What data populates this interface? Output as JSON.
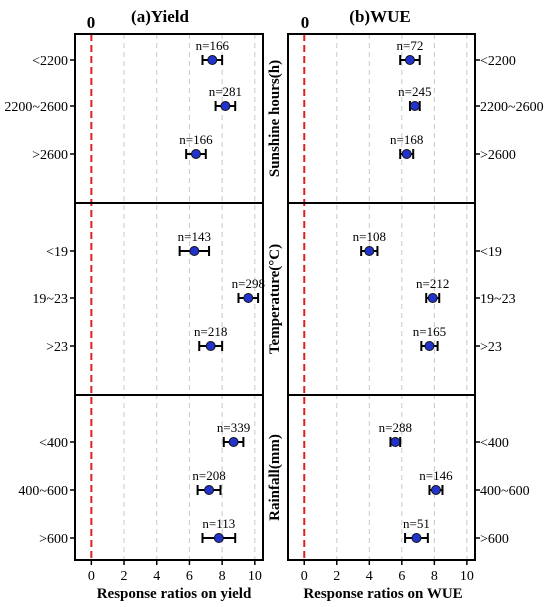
{
  "chart_data": [
    {
      "type": "scatter",
      "title": "(a)Yield",
      "xlabel": "Response ratios on yield",
      "zero_label": "0",
      "xlim": [
        -1,
        10.5
      ],
      "xticks": [
        "0",
        "2",
        "4",
        "6",
        "8",
        "10"
      ],
      "groups": [
        {
          "name": "Sunshine hours(h)",
          "categories": [
            "<2200",
            "2200~2600",
            ">2600"
          ],
          "values": [
            7.4,
            8.2,
            6.4
          ],
          "ci_low": [
            6.8,
            7.6,
            5.8
          ],
          "ci_high": [
            8.0,
            8.8,
            7.0
          ],
          "n": [
            "n=166",
            "n=281",
            "n=166"
          ]
        },
        {
          "name": "Temperature(°C)",
          "categories": [
            "<19",
            "19~23",
            ">23"
          ],
          "values": [
            6.3,
            9.6,
            7.3
          ],
          "ci_low": [
            5.4,
            9.0,
            6.6
          ],
          "ci_high": [
            7.2,
            10.2,
            8.0
          ],
          "n": [
            "n=143",
            "n=298",
            "n=218"
          ]
        },
        {
          "name": "Rainfall(mm)",
          "categories": [
            "<400",
            "400~600",
            ">600"
          ],
          "values": [
            8.7,
            7.2,
            7.8
          ],
          "ci_low": [
            8.1,
            6.5,
            6.8
          ],
          "ci_high": [
            9.3,
            7.9,
            8.8
          ],
          "n": [
            "n=339",
            "n=208",
            "n=113"
          ]
        }
      ]
    },
    {
      "type": "scatter",
      "title": "(b)WUE",
      "xlabel": "Response ratios on WUE",
      "zero_label": "0",
      "xlim": [
        -1,
        10.5
      ],
      "xticks": [
        "0",
        "2",
        "4",
        "6",
        "8",
        "10"
      ],
      "groups": [
        {
          "name": "Sunshine hours(h)",
          "categories": [
            "<2200",
            "2200~2600",
            ">2600"
          ],
          "values": [
            6.5,
            6.8,
            6.3
          ],
          "ci_low": [
            5.9,
            6.5,
            5.9
          ],
          "ci_high": [
            7.1,
            7.1,
            6.7
          ],
          "n": [
            "n=72",
            "n=245",
            "n=168"
          ]
        },
        {
          "name": "Temperature(°C)",
          "categories": [
            "<19",
            "19~23",
            ">23"
          ],
          "values": [
            4.0,
            7.9,
            7.7
          ],
          "ci_low": [
            3.5,
            7.5,
            7.2
          ],
          "ci_high": [
            4.5,
            8.3,
            8.2
          ],
          "n": [
            "n=108",
            "n=212",
            "n=165"
          ]
        },
        {
          "name": "Rainfall(mm)",
          "categories": [
            "<400",
            "400~600",
            ">600"
          ],
          "values": [
            5.6,
            8.1,
            6.9
          ],
          "ci_low": [
            5.3,
            7.7,
            6.2
          ],
          "ci_high": [
            5.9,
            8.5,
            7.6
          ],
          "n": [
            "n=288",
            "n=146",
            "n=51"
          ]
        }
      ]
    }
  ],
  "colors": {
    "point": "#2233cc",
    "zero_line": "#e02020",
    "grid": "#c8c8c8",
    "axis": "#000000"
  }
}
